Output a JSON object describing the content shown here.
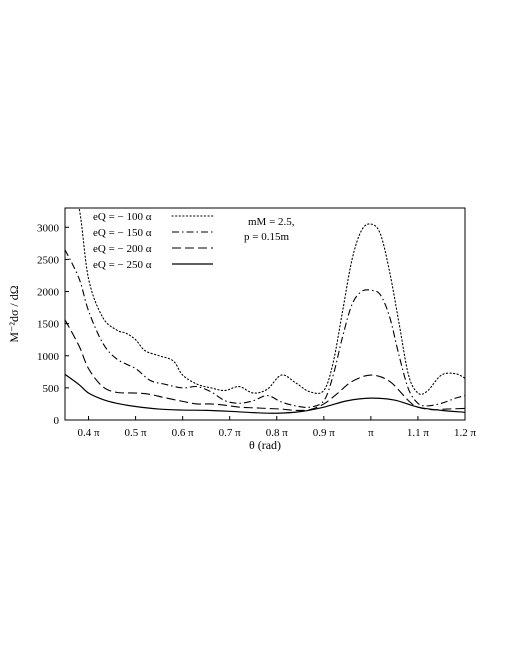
{
  "chart_data": {
    "type": "line",
    "title": "",
    "xlabel": "θ (rad)",
    "ylabel": "M⁻²dσ / dΩ",
    "xlim": [
      0.35,
      1.2
    ],
    "ylim": [
      0,
      3300
    ],
    "x_ticks": [
      0.4,
      0.5,
      0.6,
      0.7,
      0.8,
      0.9,
      1.0,
      1.1,
      1.2
    ],
    "x_tick_labels": [
      "0.4 π",
      "0.5 π",
      "0.6 π",
      "0.7 π",
      "0.8 π",
      "0.9 π",
      "π",
      "1.1 π",
      "1.2 π"
    ],
    "y_ticks": [
      0,
      500,
      1000,
      1500,
      2000,
      2500,
      3000
    ],
    "y_tick_labels": [
      "0",
      "500",
      "1000",
      "1500",
      "2000",
      "2500",
      "3000"
    ],
    "x_unit": "π rad",
    "grid": false,
    "legend_position": "top-left",
    "annotations": [
      "mM = 2.5,",
      "p = 0.15m"
    ],
    "series": [
      {
        "name": "eQ = − 100 α",
        "style": "dotted",
        "x": [
          0.35,
          0.38,
          0.4,
          0.43,
          0.46,
          0.48,
          0.5,
          0.52,
          0.55,
          0.58,
          0.6,
          0.63,
          0.66,
          0.69,
          0.72,
          0.75,
          0.78,
          0.81,
          0.84,
          0.87,
          0.9,
          0.92,
          0.94,
          0.96,
          0.98,
          1.0,
          1.02,
          1.04,
          1.06,
          1.08,
          1.1,
          1.12,
          1.15,
          1.18,
          1.2
        ],
        "y": [
          4200,
          3300,
          2200,
          1600,
          1400,
          1350,
          1250,
          1080,
          1000,
          920,
          700,
          560,
          500,
          460,
          520,
          420,
          480,
          700,
          580,
          440,
          460,
          900,
          1700,
          2500,
          2950,
          3050,
          2900,
          2300,
          1500,
          700,
          420,
          450,
          700,
          720,
          650
        ]
      },
      {
        "name": "eQ = − 150 α",
        "style": "dash-dot",
        "x": [
          0.35,
          0.38,
          0.4,
          0.43,
          0.46,
          0.5,
          0.53,
          0.56,
          0.6,
          0.63,
          0.66,
          0.69,
          0.72,
          0.75,
          0.78,
          0.81,
          0.84,
          0.87,
          0.9,
          0.92,
          0.94,
          0.96,
          0.98,
          1.0,
          1.02,
          1.04,
          1.06,
          1.08,
          1.1,
          1.12,
          1.15,
          1.18,
          1.2
        ],
        "y": [
          2650,
          2200,
          1700,
          1200,
          950,
          800,
          620,
          560,
          500,
          520,
          440,
          300,
          260,
          300,
          380,
          280,
          220,
          200,
          300,
          700,
          1300,
          1800,
          2000,
          2020,
          1950,
          1600,
          1000,
          480,
          260,
          220,
          260,
          340,
          380
        ]
      },
      {
        "name": "eQ = − 200 α",
        "style": "dashed",
        "x": [
          0.35,
          0.38,
          0.4,
          0.43,
          0.46,
          0.5,
          0.53,
          0.56,
          0.6,
          0.63,
          0.66,
          0.69,
          0.72,
          0.75,
          0.78,
          0.81,
          0.84,
          0.87,
          0.9,
          0.93,
          0.96,
          1.0,
          1.04,
          1.08,
          1.1,
          1.13,
          1.16,
          1.2
        ],
        "y": [
          1560,
          1150,
          800,
          520,
          430,
          420,
          400,
          350,
          290,
          250,
          250,
          230,
          200,
          190,
          180,
          170,
          150,
          160,
          250,
          420,
          600,
          700,
          600,
          300,
          200,
          160,
          170,
          180
        ]
      },
      {
        "name": "eQ = − 250 α",
        "style": "solid",
        "x": [
          0.35,
          0.38,
          0.4,
          0.43,
          0.46,
          0.5,
          0.55,
          0.6,
          0.65,
          0.7,
          0.75,
          0.8,
          0.85,
          0.9,
          0.95,
          1.0,
          1.05,
          1.1,
          1.15,
          1.2
        ],
        "y": [
          710,
          550,
          420,
          320,
          260,
          210,
          170,
          155,
          150,
          135,
          115,
          105,
          130,
          200,
          300,
          340,
          310,
          200,
          150,
          120
        ]
      }
    ]
  }
}
